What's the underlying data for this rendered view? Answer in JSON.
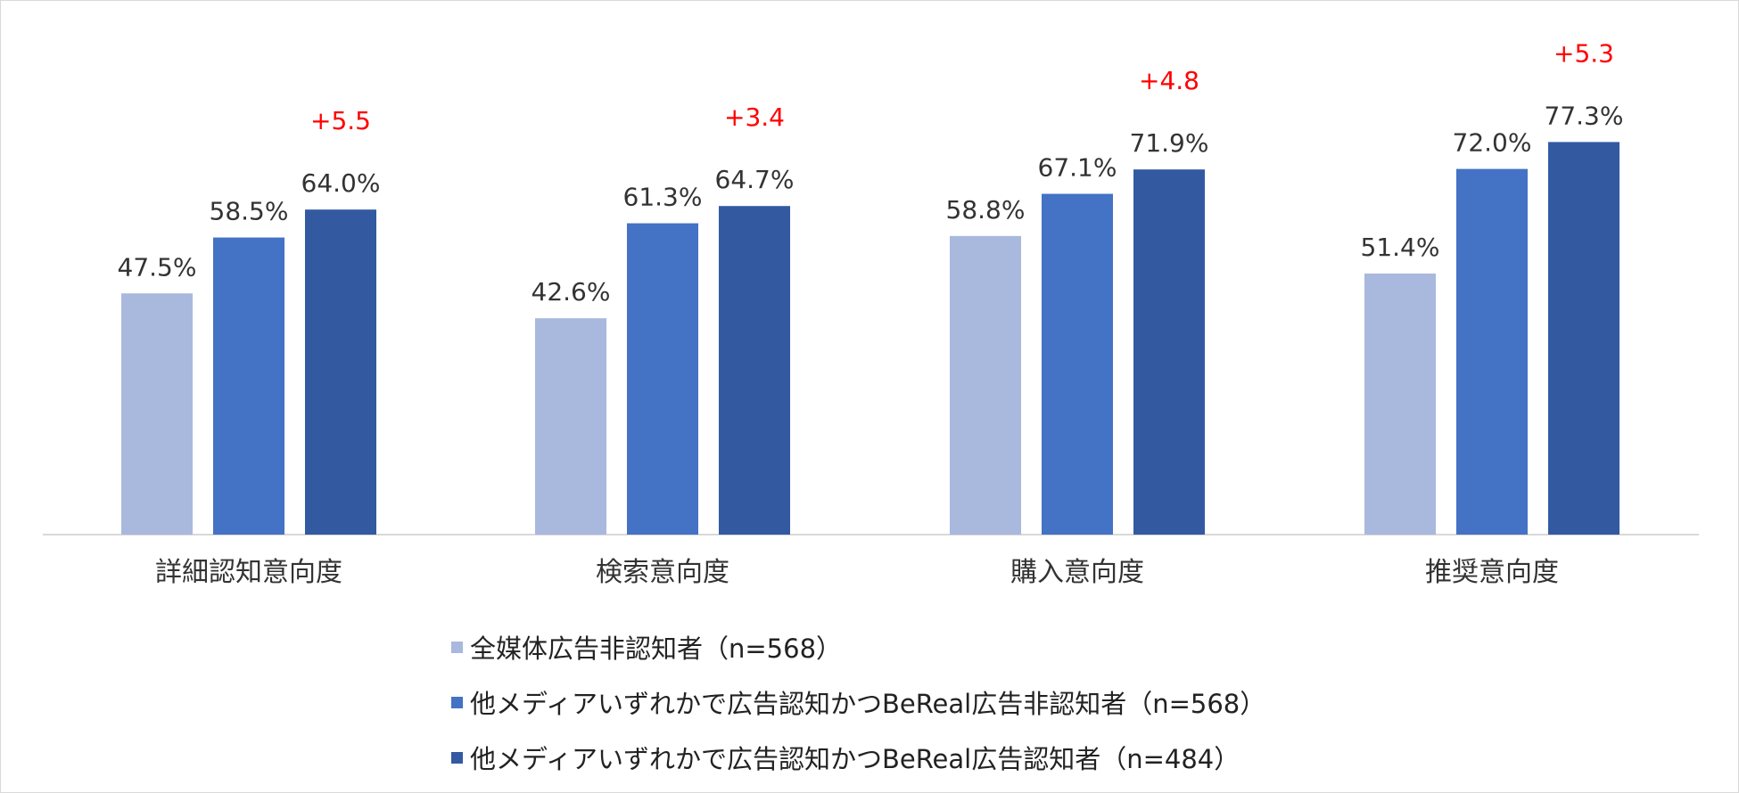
{
  "chart_data": {
    "type": "bar",
    "categories": [
      "詳細認知意向度",
      "検索意向度",
      "購入意向度",
      "推奨意向度"
    ],
    "series": [
      {
        "name": "全媒体広告非認知者（n=568）",
        "values": [
          47.5,
          42.6,
          58.8,
          51.4
        ],
        "color": "#a9b8dd"
      },
      {
        "name": "他メディアいずれかで広告認知かつBeReal広告非認知者（n=568）",
        "values": [
          58.5,
          61.3,
          67.1,
          72.0
        ],
        "color": "#4472c4"
      },
      {
        "name": "他メディアいずれかで広告認知かつBeReal広告認知者（n=484）",
        "values": [
          64.0,
          64.7,
          71.9,
          77.3
        ],
        "color": "#335aa1"
      }
    ],
    "data_labels": [
      [
        "47.5%",
        "42.6%",
        "58.8%",
        "51.4%"
      ],
      [
        "58.5%",
        "61.3%",
        "67.1%",
        "72.0%"
      ],
      [
        "64.0%",
        "64.7%",
        "71.9%",
        "77.3%"
      ]
    ],
    "annotations": [
      "+5.5",
      "+3.4",
      "+4.8",
      "+5.3"
    ],
    "annotation_color": "#ff0000",
    "ylim": [
      0,
      100
    ],
    "grid": false,
    "legend_position": "bottom"
  }
}
